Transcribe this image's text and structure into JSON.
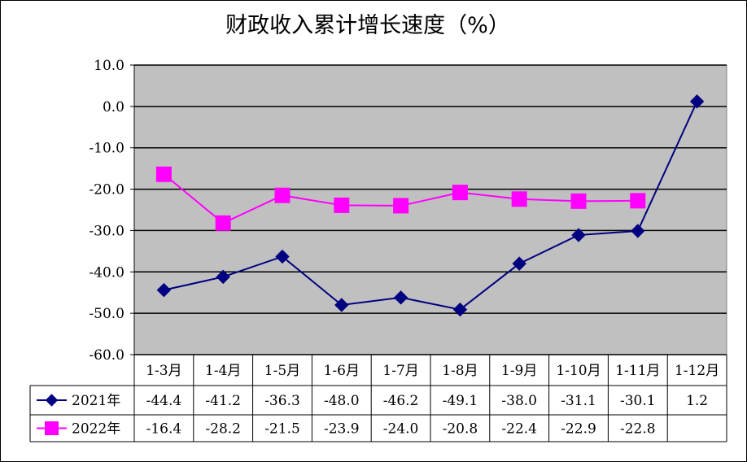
{
  "chart_data": {
    "type": "line",
    "title": "财政收入累计增长速度（%）",
    "categories": [
      "1-3月",
      "1-4月",
      "1-5月",
      "1-6月",
      "1-7月",
      "1-8月",
      "1-9月",
      "1-10月",
      "1-11月",
      "1-12月"
    ],
    "ylim": [
      -60,
      10
    ],
    "yticks": [
      "10.0",
      "0.0",
      "-10.0",
      "-20.0",
      "-30.0",
      "-40.0",
      "-50.0",
      "-60.0"
    ],
    "grid": true,
    "legend_position": "data-table-left",
    "plot_background": "#c0c0c0",
    "series": [
      {
        "name": "2021年",
        "color": "#000080",
        "marker": "diamond",
        "values": [
          -44.4,
          -41.2,
          -36.3,
          -48.0,
          -46.2,
          -49.1,
          -38.0,
          -31.1,
          -30.1,
          1.2
        ],
        "labels": [
          "-44.4",
          "-41.2",
          "-36.3",
          "-48.0",
          "-46.2",
          "-49.1",
          "-38.0",
          "-31.1",
          "-30.1",
          "1.2"
        ]
      },
      {
        "name": "2022年",
        "color": "#ff00ff",
        "marker": "square",
        "values": [
          -16.4,
          -28.2,
          -21.5,
          -23.9,
          -24.0,
          -20.8,
          -22.4,
          -22.9,
          -22.8,
          null
        ],
        "labels": [
          "-16.4",
          "-28.2",
          "-21.5",
          "-23.9",
          "-24.0",
          "-20.8",
          "-22.4",
          "-22.9",
          "-22.8",
          ""
        ]
      }
    ]
  }
}
